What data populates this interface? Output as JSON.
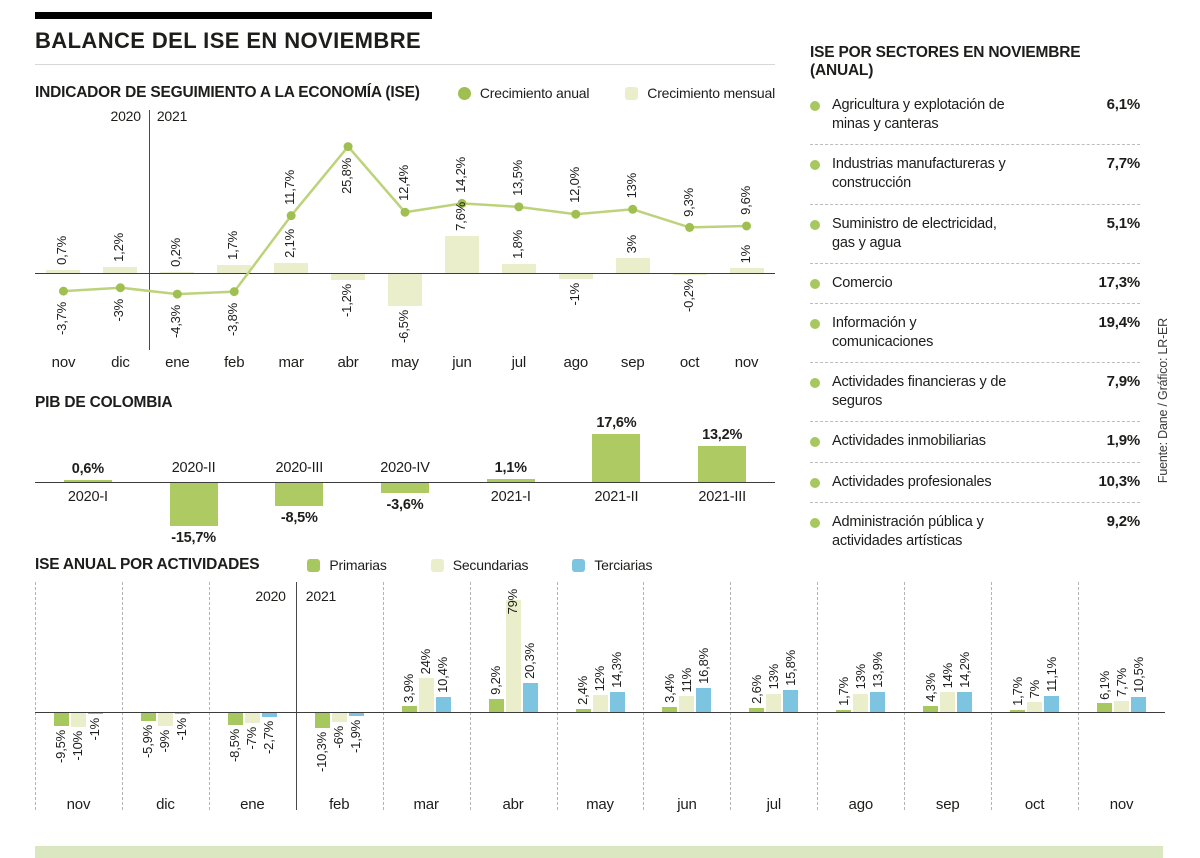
{
  "page": {
    "title": "BALANCE DEL ISE EN NOVIEMBRE",
    "source_note": "Fuente: Dane / Gráfico: LR-ER"
  },
  "sectors": {
    "title": "ISE POR SECTORES EN NOVIEMBRE (ANUAL)",
    "bullet_color": "#a7c75f",
    "items": [
      {
        "name": "Agricultura y explotación de minas y canteras",
        "value": "6,1%"
      },
      {
        "name": "Industrias manufactureras y construcción",
        "value": "7,7%"
      },
      {
        "name": "Suministro de electricidad, gas y agua",
        "value": "5,1%"
      },
      {
        "name": "Comercio",
        "value": "17,3%"
      },
      {
        "name": "Información y comunicaciones",
        "value": "19,4%"
      },
      {
        "name": "Actividades financieras y de seguros",
        "value": "7,9%"
      },
      {
        "name": "Actividades inmobiliarias",
        "value": "1,9%"
      },
      {
        "name": "Actividades profesionales",
        "value": "10,3%"
      },
      {
        "name": "Administración pública y actividades artísticas",
        "value": "9,2%"
      }
    ]
  },
  "chart_data": [
    {
      "id": "ise",
      "type": "line",
      "title": "INDICADOR DE SEGUIMIENTO A LA ECONOMÍA (ISE)",
      "categories": [
        "nov",
        "dic",
        "ene",
        "feb",
        "mar",
        "abr",
        "may",
        "jun",
        "jul",
        "ago",
        "sep",
        "oct",
        "nov"
      ],
      "years": [
        "2020",
        "2021"
      ],
      "year_split_after": "dic",
      "series": [
        {
          "name": "Crecimiento anual",
          "type": "line",
          "dot_color": "#a0bf51",
          "line_color": "#bdd37b",
          "values": [
            -3.7,
            -3,
            -4.3,
            -3.8,
            11.7,
            25.8,
            12.4,
            14.2,
            13.5,
            12,
            13,
            9.3,
            9.6
          ],
          "labels": [
            "-3,7%",
            "-3%",
            "-4,3%",
            "-3,8%",
            "11,7%",
            "25,8%",
            "12,4%",
            "14,2%",
            "13,5%",
            "12,0%",
            "13%",
            "9,3%",
            "9,6%"
          ]
        },
        {
          "name": "Crecimiento mensual",
          "type": "bar",
          "color": "#ebeecb",
          "values": [
            0.7,
            1.2,
            0.2,
            1.7,
            2.1,
            -1.2,
            -6.5,
            7.6,
            1.8,
            -1,
            3,
            -0.2,
            1
          ],
          "labels": [
            "0,7%",
            "1,2%",
            "0,2%",
            "1,7%",
            "2,1%",
            "-1,2%",
            "-6,5%",
            "7,6%",
            "1,8%",
            "-1%",
            "3%",
            "-0,2%",
            "1%"
          ]
        }
      ]
    },
    {
      "id": "pib",
      "type": "bar",
      "title": "PIB DE COLOMBIA",
      "color": "#aeca63",
      "categories": [
        "2020-I",
        "2020-II",
        "2020-III",
        "2020-IV",
        "2021-I",
        "2021-II",
        "2021-III"
      ],
      "values": [
        0.6,
        -15.7,
        -8.5,
        -3.6,
        1.1,
        17.6,
        13.2
      ],
      "labels": [
        "0,6%",
        "-15,7%",
        "-8,5%",
        "-3,6%",
        "1,1%",
        "17,6%",
        "13,2%"
      ]
    },
    {
      "id": "actividades",
      "type": "grouped-bar",
      "title": "ISE ANUAL POR ACTIVIDADES",
      "categories": [
        "nov",
        "dic",
        "ene",
        "feb",
        "mar",
        "abr",
        "may",
        "jun",
        "jul",
        "ago",
        "sep",
        "oct",
        "nov"
      ],
      "years": [
        "2020",
        "2021"
      ],
      "year_split_after": "ene",
      "series": [
        {
          "name": "Primarias",
          "color": "#a7c75f",
          "values": [
            -9.5,
            -5.9,
            -8.5,
            -10.3,
            3.9,
            9.2,
            2.4,
            3.4,
            2.6,
            1.7,
            4.3,
            1.7,
            6.1
          ],
          "labels": [
            "-9,5%",
            "-5,9%",
            "-8,5%",
            "-10,3%",
            "3,9%",
            "9,2%",
            "2,4%",
            "3,4%",
            "2,6%",
            "1,7%",
            "4,3%",
            "1,7%",
            "6,1%"
          ]
        },
        {
          "name": "Secundarias",
          "color": "#ebeecb",
          "values": [
            -10,
            -9,
            -7,
            -6,
            24,
            79,
            12,
            11,
            13,
            13,
            14,
            7,
            7.7
          ],
          "labels": [
            "-10%",
            "-9%",
            "-7%",
            "-6%",
            "24%",
            "79%",
            "12%",
            "11%",
            "13%",
            "13%",
            "14%",
            "7%",
            "7,7%"
          ]
        },
        {
          "name": "Terciarias",
          "color": "#7dc4e1",
          "values": [
            -1,
            -1,
            -2.7,
            -1.9,
            10.4,
            20.3,
            14.3,
            16.8,
            15.8,
            13.9,
            14.2,
            11.1,
            10.5
          ],
          "labels": [
            "-1%",
            "-1%",
            "-2,7%",
            "-1,9%",
            "10,4%",
            "20,3%",
            "14,3%",
            "16,8%",
            "15,8%",
            "13,9%",
            "14,2%",
            "11,1%",
            "10,5%"
          ]
        }
      ]
    }
  ]
}
